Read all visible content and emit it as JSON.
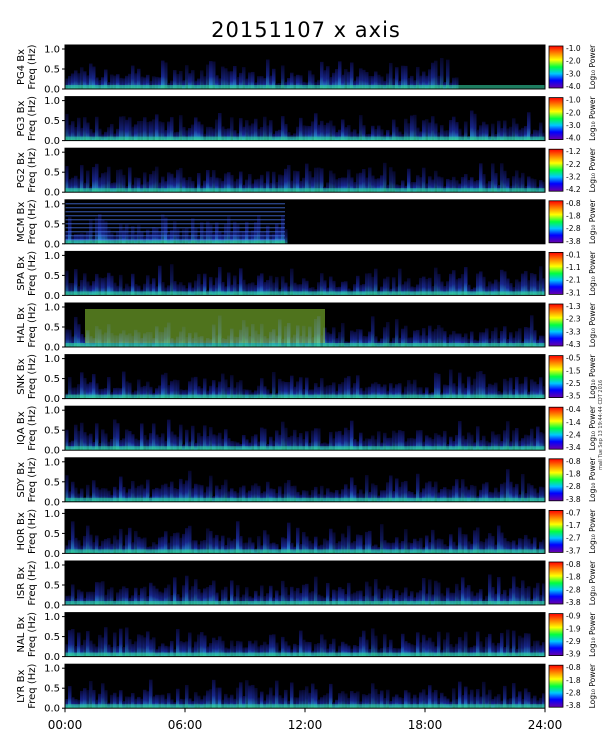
{
  "title": "20151107 x axis",
  "stamp": "mall Tue Sep 13 19:44:44 CDT 2016",
  "xticks": [
    "00:00",
    "06:00",
    "12:00",
    "18:00",
    "24:00"
  ],
  "chart_data": {
    "type": "heatmap",
    "title": "20151107 x axis",
    "x_range_hours": [
      0,
      24
    ],
    "y_range_hz": [
      0,
      1.1
    ],
    "yticks": [
      "1.0",
      "0.5",
      "0.0"
    ],
    "colorbar_label": "Log₁₀ Power",
    "panels": [
      {
        "station": "PG4",
        "ylabel": "PG4 Bx",
        "ylabel2": "Freq (Hz)",
        "cbar": [
          "-1.0",
          "-2.0",
          "-3.0",
          "-4.0"
        ]
      },
      {
        "station": "PG3",
        "ylabel": "PG3 Bx",
        "ylabel2": "Freq (Hz)",
        "cbar": [
          "-1.0",
          "-2.0",
          "-3.0",
          "-4.0"
        ]
      },
      {
        "station": "PG2",
        "ylabel": "PG2 Bx",
        "ylabel2": "Freq (Hz)",
        "cbar": [
          "-1.2",
          "-2.2",
          "-3.2",
          "-4.2"
        ]
      },
      {
        "station": "MCM",
        "ylabel": "MCM Bx",
        "ylabel2": "Freq (Hz)",
        "cbar": [
          "-0.8",
          "-1.8",
          "-2.8",
          "-3.8"
        ]
      },
      {
        "station": "SPA",
        "ylabel": "SPA Bx",
        "ylabel2": "Freq (Hz)",
        "cbar": [
          "-0.1",
          "-1.1",
          "-2.1",
          "-3.1"
        ]
      },
      {
        "station": "HAL",
        "ylabel": "HAL Bx",
        "ylabel2": "Freq (Hz)",
        "cbar": [
          "-1.3",
          "-2.3",
          "-3.3",
          "-4.3"
        ]
      },
      {
        "station": "SNK",
        "ylabel": "SNK Bx",
        "ylabel2": "Freq (Hz)",
        "cbar": [
          "-0.5",
          "-1.5",
          "-2.5",
          "-3.5"
        ]
      },
      {
        "station": "IQA",
        "ylabel": "IQA Bx",
        "ylabel2": "Freq (Hz)",
        "cbar": [
          "-0.4",
          "-1.4",
          "-2.4",
          "-3.4"
        ]
      },
      {
        "station": "SDY",
        "ylabel": "SDY Bx",
        "ylabel2": "Freq (Hz)",
        "cbar": [
          "-0.8",
          "-1.8",
          "-2.8",
          "-3.8"
        ]
      },
      {
        "station": "HOR",
        "ylabel": "HOR Bx",
        "ylabel2": "Freq (Hz)",
        "cbar": [
          "-0.7",
          "-1.7",
          "-2.7",
          "-3.7"
        ]
      },
      {
        "station": "ISR",
        "ylabel": "ISR Bx",
        "ylabel2": "Freq (Hz)",
        "cbar": [
          "-0.8",
          "-1.8",
          "-2.8",
          "-3.8"
        ]
      },
      {
        "station": "NAL",
        "ylabel": "NAL Bx",
        "ylabel2": "Freq (Hz)",
        "cbar": [
          "-0.9",
          "-1.9",
          "-2.9",
          "-3.9"
        ]
      },
      {
        "station": "LYR",
        "ylabel": "LYR Bx",
        "ylabel2": "Freq (Hz)",
        "cbar": [
          "-0.8",
          "-1.8",
          "-2.8",
          "-3.8"
        ]
      }
    ]
  }
}
